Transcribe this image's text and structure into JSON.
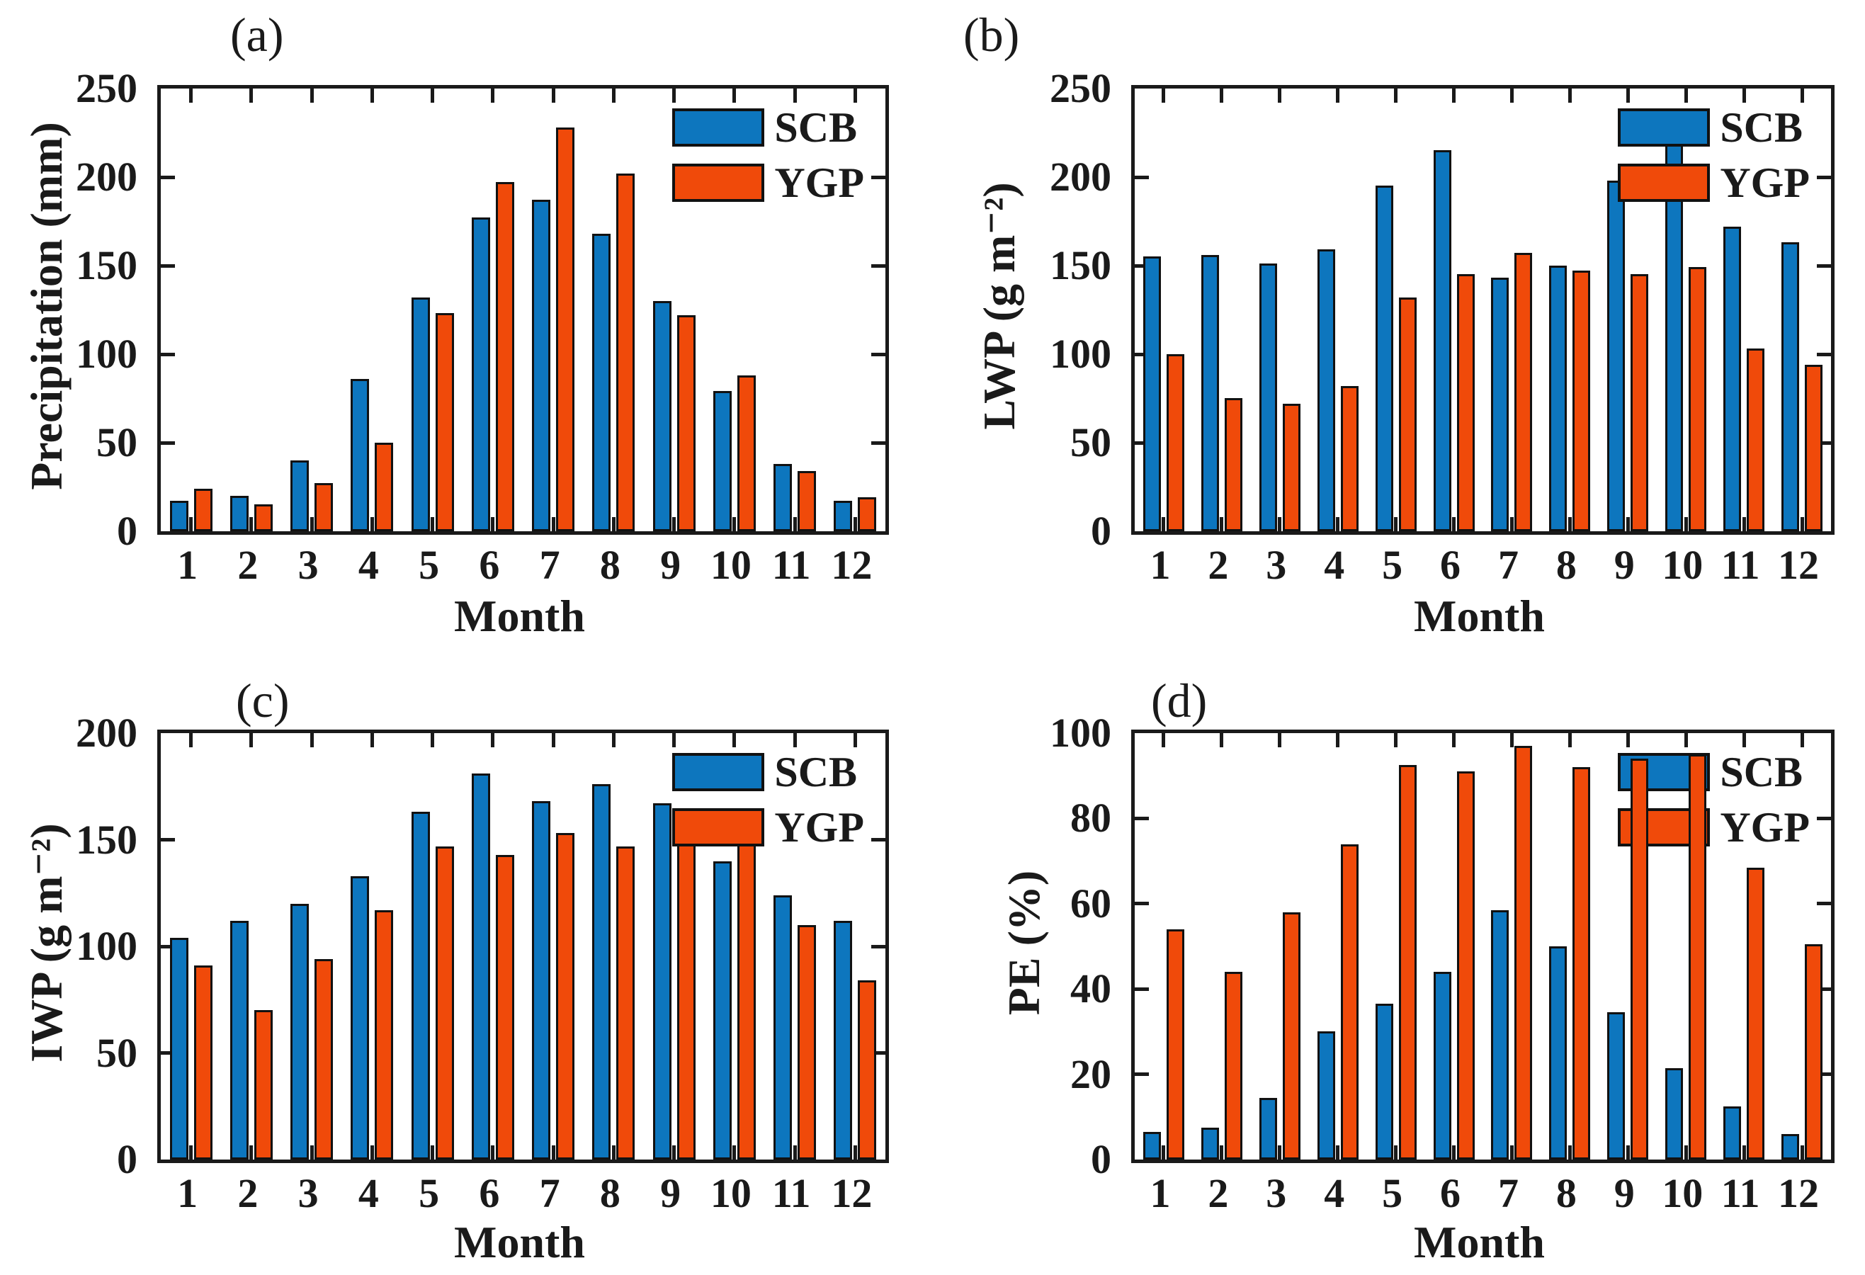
{
  "legend": {
    "scb": "SCB",
    "ygp": "YGP"
  },
  "colors": {
    "scb": "#0D76BE",
    "ygp": "#F04A0A",
    "axis": "#1a1a1a"
  },
  "chart_data": [
    {
      "type": "bar",
      "letter": "(a)",
      "ylabel": "Precipitation (mm)",
      "xlabel": "Month",
      "categories": [
        "1",
        "2",
        "3",
        "4",
        "5",
        "6",
        "7",
        "8",
        "9",
        "10",
        "11",
        "12"
      ],
      "ylim": [
        0,
        250
      ],
      "yticks": [
        0,
        50,
        100,
        150,
        200,
        250
      ],
      "grid": false,
      "legend_position": "top-right-inside",
      "series": [
        {
          "name": "SCB",
          "color_key": "scb",
          "values": [
            17,
            20,
            40,
            86,
            132,
            177,
            187,
            168,
            130,
            79,
            38,
            17
          ]
        },
        {
          "name": "YGP",
          "color_key": "ygp",
          "values": [
            24,
            15,
            27,
            50,
            123,
            197,
            228,
            202,
            122,
            88,
            34,
            19
          ]
        }
      ]
    },
    {
      "type": "bar",
      "letter": "(b)",
      "ylabel": "LWP (g m⁻²)",
      "xlabel": "Month",
      "categories": [
        "1",
        "2",
        "3",
        "4",
        "5",
        "6",
        "7",
        "8",
        "9",
        "10",
        "11",
        "12"
      ],
      "ylim": [
        0,
        250
      ],
      "yticks": [
        0,
        50,
        100,
        150,
        200,
        250
      ],
      "grid": false,
      "legend_position": "top-right-inside",
      "series": [
        {
          "name": "SCB",
          "color_key": "scb",
          "values": [
            155,
            156,
            151,
            159,
            195,
            215,
            143,
            150,
            198,
            224,
            172,
            163
          ]
        },
        {
          "name": "YGP",
          "color_key": "ygp",
          "values": [
            100,
            75,
            72,
            82,
            132,
            145,
            157,
            147,
            145,
            149,
            103,
            94
          ]
        }
      ]
    },
    {
      "type": "bar",
      "letter": "(c)",
      "ylabel": "IWP (g m⁻²)",
      "xlabel": "Month",
      "categories": [
        "1",
        "2",
        "3",
        "4",
        "5",
        "6",
        "7",
        "8",
        "9",
        "10",
        "11",
        "12"
      ],
      "ylim": [
        0,
        200
      ],
      "yticks": [
        0,
        50,
        100,
        150,
        200
      ],
      "grid": false,
      "legend_position": "top-right-inside",
      "series": [
        {
          "name": "SCB",
          "color_key": "scb",
          "values": [
            104,
            112,
            120,
            133,
            163,
            181,
            168,
            176,
            167,
            140,
            124,
            112
          ]
        },
        {
          "name": "YGP",
          "color_key": "ygp",
          "values": [
            91,
            70,
            94,
            117,
            147,
            143,
            153,
            147,
            150,
            152,
            110,
            84
          ]
        }
      ]
    },
    {
      "type": "bar",
      "letter": "(d)",
      "ylabel": "PE (%)",
      "xlabel": "Month",
      "categories": [
        "1",
        "2",
        "3",
        "4",
        "5",
        "6",
        "7",
        "8",
        "9",
        "10",
        "11",
        "12"
      ],
      "ylim": [
        0,
        100
      ],
      "yticks": [
        0,
        20,
        40,
        60,
        80,
        100
      ],
      "grid": false,
      "legend_position": "top-right-inside",
      "series": [
        {
          "name": "SCB",
          "color_key": "scb",
          "values": [
            6.5,
            7.5,
            14.5,
            30,
            36.5,
            44,
            58.5,
            50,
            34.5,
            21.5,
            12.5,
            6
          ]
        },
        {
          "name": "YGP",
          "color_key": "ygp",
          "values": [
            54,
            44,
            58,
            74,
            92.5,
            91,
            97,
            92,
            94,
            95,
            68.5,
            50.5
          ]
        }
      ]
    }
  ]
}
